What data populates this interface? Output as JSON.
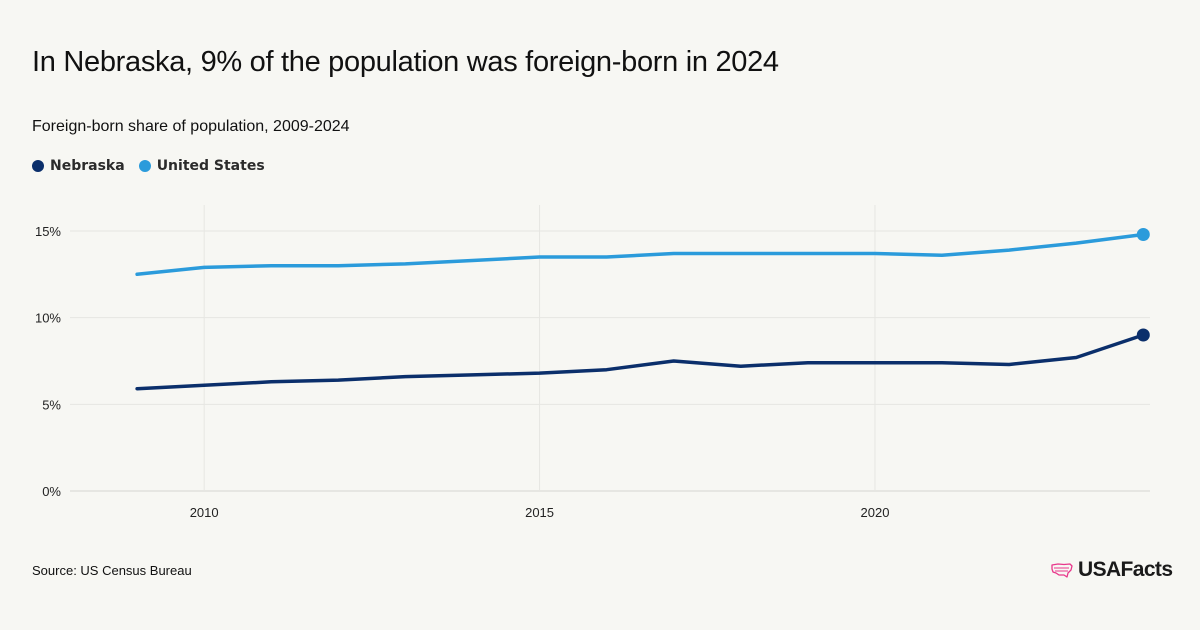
{
  "header": {
    "title": "In Nebraska, 9% of the population was foreign-born in 2024",
    "subtitle": "Foreign-born share of population, 2009-2024"
  },
  "legend": [
    {
      "label": "Nebraska",
      "color": "#0b2f6b"
    },
    {
      "label": "United States",
      "color": "#2b9bdb"
    }
  ],
  "footer": {
    "source": "Source: US Census Bureau",
    "logo_text": "USAFacts",
    "logo_icon": "us-map-icon",
    "logo_color": "#e8378b"
  },
  "chart_data": {
    "type": "line",
    "title": "In Nebraska, 9% of the population was foreign-born in 2024",
    "subtitle": "Foreign-born share of population, 2009-2024",
    "xlabel": "",
    "ylabel": "",
    "x": [
      2009,
      2010,
      2011,
      2012,
      2013,
      2014,
      2015,
      2016,
      2017,
      2018,
      2019,
      2020,
      2021,
      2022,
      2023,
      2024
    ],
    "series": [
      {
        "name": "Nebraska",
        "color": "#0b2f6b",
        "values": [
          5.9,
          6.1,
          6.3,
          6.4,
          6.6,
          6.7,
          6.8,
          7.0,
          7.5,
          7.2,
          7.4,
          7.4,
          7.4,
          7.3,
          7.7,
          9.0
        ]
      },
      {
        "name": "United States",
        "color": "#2b9bdb",
        "values": [
          12.5,
          12.9,
          13.0,
          13.0,
          13.1,
          13.3,
          13.5,
          13.5,
          13.7,
          13.7,
          13.7,
          13.7,
          13.6,
          13.9,
          14.3,
          14.8
        ]
      }
    ],
    "xlim": [
      2008,
      2024.1
    ],
    "ylim": [
      0,
      16.5
    ],
    "yticks": [
      0,
      5,
      10,
      15
    ],
    "ytick_labels": [
      "0%",
      "5%",
      "10%",
      "15%"
    ],
    "xticks": [
      2010,
      2015,
      2020
    ],
    "xtick_labels": [
      "2010",
      "2015",
      "2020"
    ],
    "grid": true,
    "legend_position": "top-left",
    "end_markers": true
  }
}
